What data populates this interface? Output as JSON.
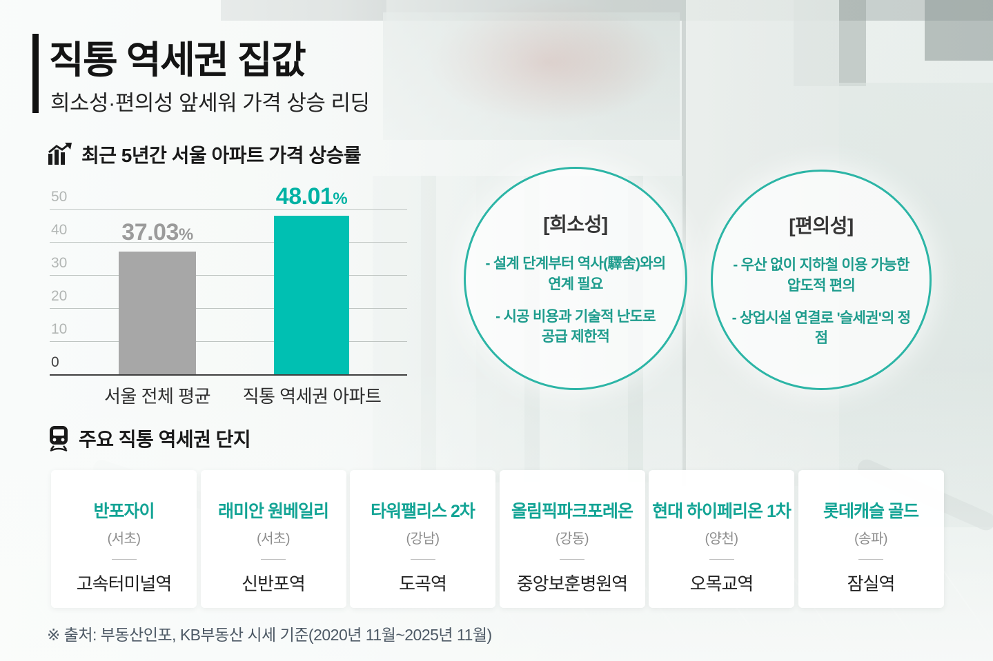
{
  "header": {
    "title": "직통 역세권 집값",
    "subtitle": "희소성·편의성 앞세워 가격 상승 리딩"
  },
  "price_chart_section": {
    "icon": "bar-chart-growth-icon",
    "title": "최근 5년간 서울 아파트 가격 상승률"
  },
  "chart_data": {
    "type": "bar",
    "title": "최근 5년간 서울 아파트 가격 상승률",
    "categories": [
      "서울 전체 평균",
      "직통 역세권 아파트"
    ],
    "values": [
      37.03,
      48.01
    ],
    "value_labels": [
      "37.03",
      "48.01"
    ],
    "unit": "%",
    "ylim": [
      0,
      50
    ],
    "yticks": [
      0,
      10,
      20,
      30,
      40,
      50
    ],
    "grid": true,
    "legend": false,
    "xlabel": "",
    "ylabel": "",
    "bar_colors": [
      "#a7a7a7",
      "#00c0b2"
    ]
  },
  "feature_circles": [
    {
      "heading": "[희소성]",
      "bullets": [
        "- 설계 단계부터 역사(驛舍)와의\n연계 필요",
        "- 시공 비용과 기술적 난도로\n공급 제한적"
      ]
    },
    {
      "heading": "[편의성]",
      "bullets": [
        "- 우산 없이 지하철 이용 가능한\n압도적 편의",
        "- 상업시설 연결로 '슬세권'의 정점"
      ]
    }
  ],
  "complex_section": {
    "icon": "train-icon",
    "title": "주요 직통 역세권 단지",
    "cards": [
      {
        "name": "반포자이",
        "district": "(서초)",
        "station": "고속터미널역"
      },
      {
        "name": "래미안 원베일리",
        "district": "(서초)",
        "station": "신반포역"
      },
      {
        "name": "타워팰리스 2차",
        "district": "(강남)",
        "station": "도곡역"
      },
      {
        "name": "올림픽파크포레온",
        "district": "(강동)",
        "station": "중앙보훈병원역"
      },
      {
        "name": "현대 하이페리온 1차",
        "district": "(양천)",
        "station": "오목교역"
      },
      {
        "name": "롯데캐슬 골드",
        "district": "(송파)",
        "station": "잠실역"
      }
    ]
  },
  "footer": {
    "source": "※ 출처: 부동산인포, KB부동산 시세 기준(2020년 11월~2025년 11월)"
  },
  "colors": {
    "accent_teal": "#00c0b2",
    "value_teal": "#00b2a4",
    "bullet_teal": "#1e9c8d",
    "card_name_teal": "#13a495",
    "circle_border": "#2cb5a6",
    "gray_bar": "#a7a7a7",
    "dark_text": "#141414",
    "source_text": "#4d5965"
  }
}
